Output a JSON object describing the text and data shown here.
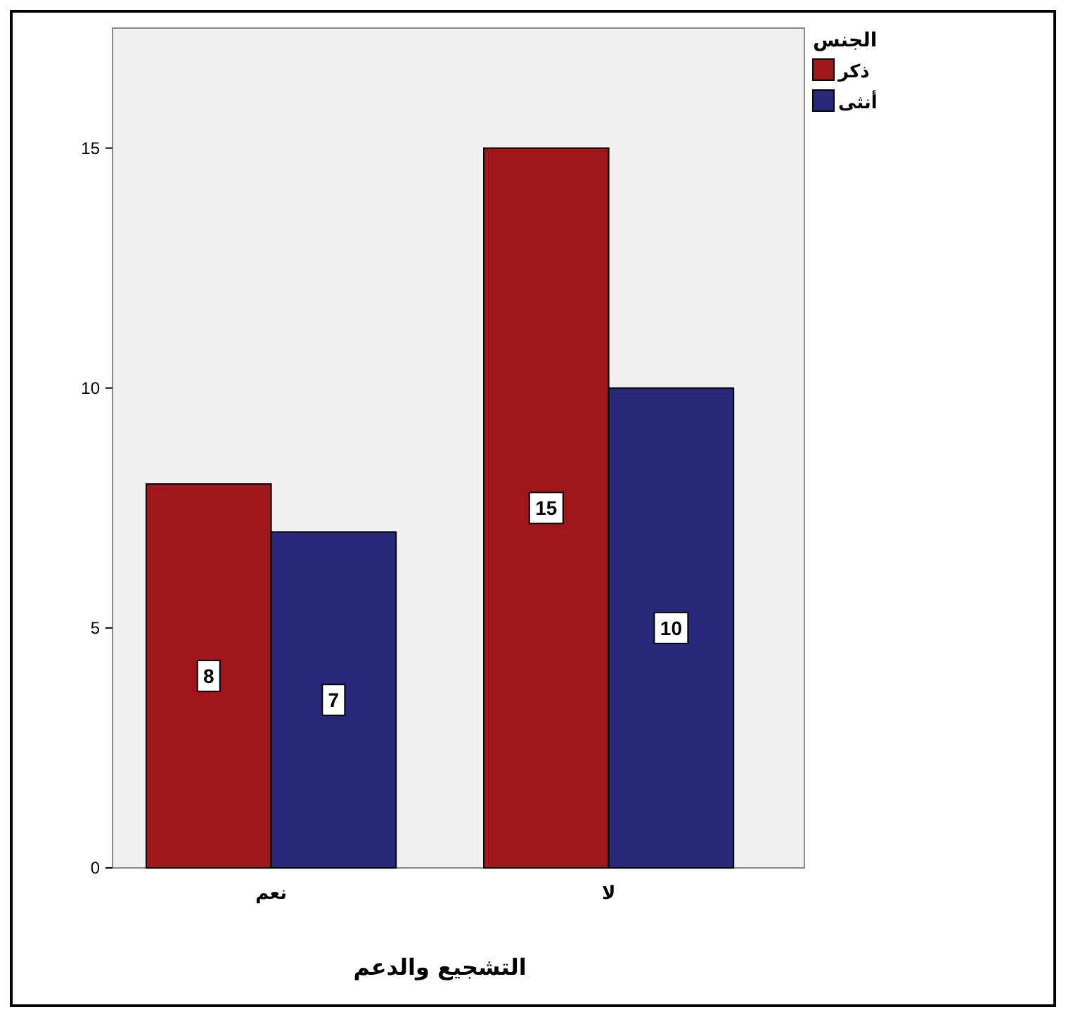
{
  "chart_data": {
    "type": "bar",
    "xlabel": "التشجيع والدعم",
    "legend_title": "الجنس",
    "categories": [
      "نعم",
      "لا"
    ],
    "series": [
      {
        "name": "ذكر",
        "color": "#a0171b",
        "values": [
          8,
          15
        ]
      },
      {
        "name": "أنثى",
        "color": "#28297a",
        "values": [
          7,
          10
        ]
      }
    ],
    "ylim": [
      0,
      17.5
    ],
    "yticks": [
      0,
      5,
      10,
      15
    ],
    "data_labels": true,
    "grid": false,
    "legend": "top right"
  }
}
